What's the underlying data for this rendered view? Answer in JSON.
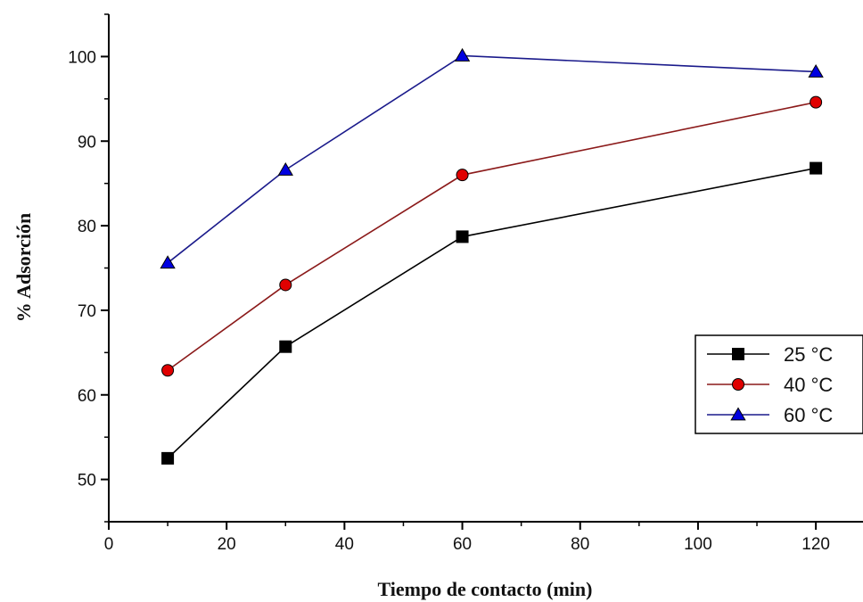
{
  "chart_data": {
    "type": "line",
    "xlabel": "Tiempo de contacto (min)",
    "ylabel": "% Adsorción",
    "xlim": [
      0,
      128
    ],
    "ylim": [
      45,
      105
    ],
    "x_ticks": [
      0,
      20,
      40,
      60,
      80,
      100,
      120
    ],
    "y_ticks": [
      50,
      60,
      70,
      80,
      90,
      100
    ],
    "grid": false,
    "legend_position": "right",
    "series": [
      {
        "name": "25 °C",
        "marker": "square",
        "line_color": "#000000",
        "marker_color": "#000000",
        "x": [
          10,
          30,
          60,
          120
        ],
        "y": [
          52.5,
          65.7,
          78.7,
          86.8
        ]
      },
      {
        "name": "40 °C",
        "marker": "circle",
        "line_color": "#8b1a1a",
        "marker_color": "#e00000",
        "x": [
          10,
          30,
          60,
          120
        ],
        "y": [
          62.9,
          73.0,
          86.0,
          94.6
        ]
      },
      {
        "name": "60 °C",
        "marker": "triangle",
        "line_color": "#1a1a8b",
        "marker_color": "#0000e0",
        "x": [
          10,
          30,
          60,
          120
        ],
        "y": [
          75.6,
          86.6,
          100.1,
          98.2
        ]
      }
    ]
  }
}
